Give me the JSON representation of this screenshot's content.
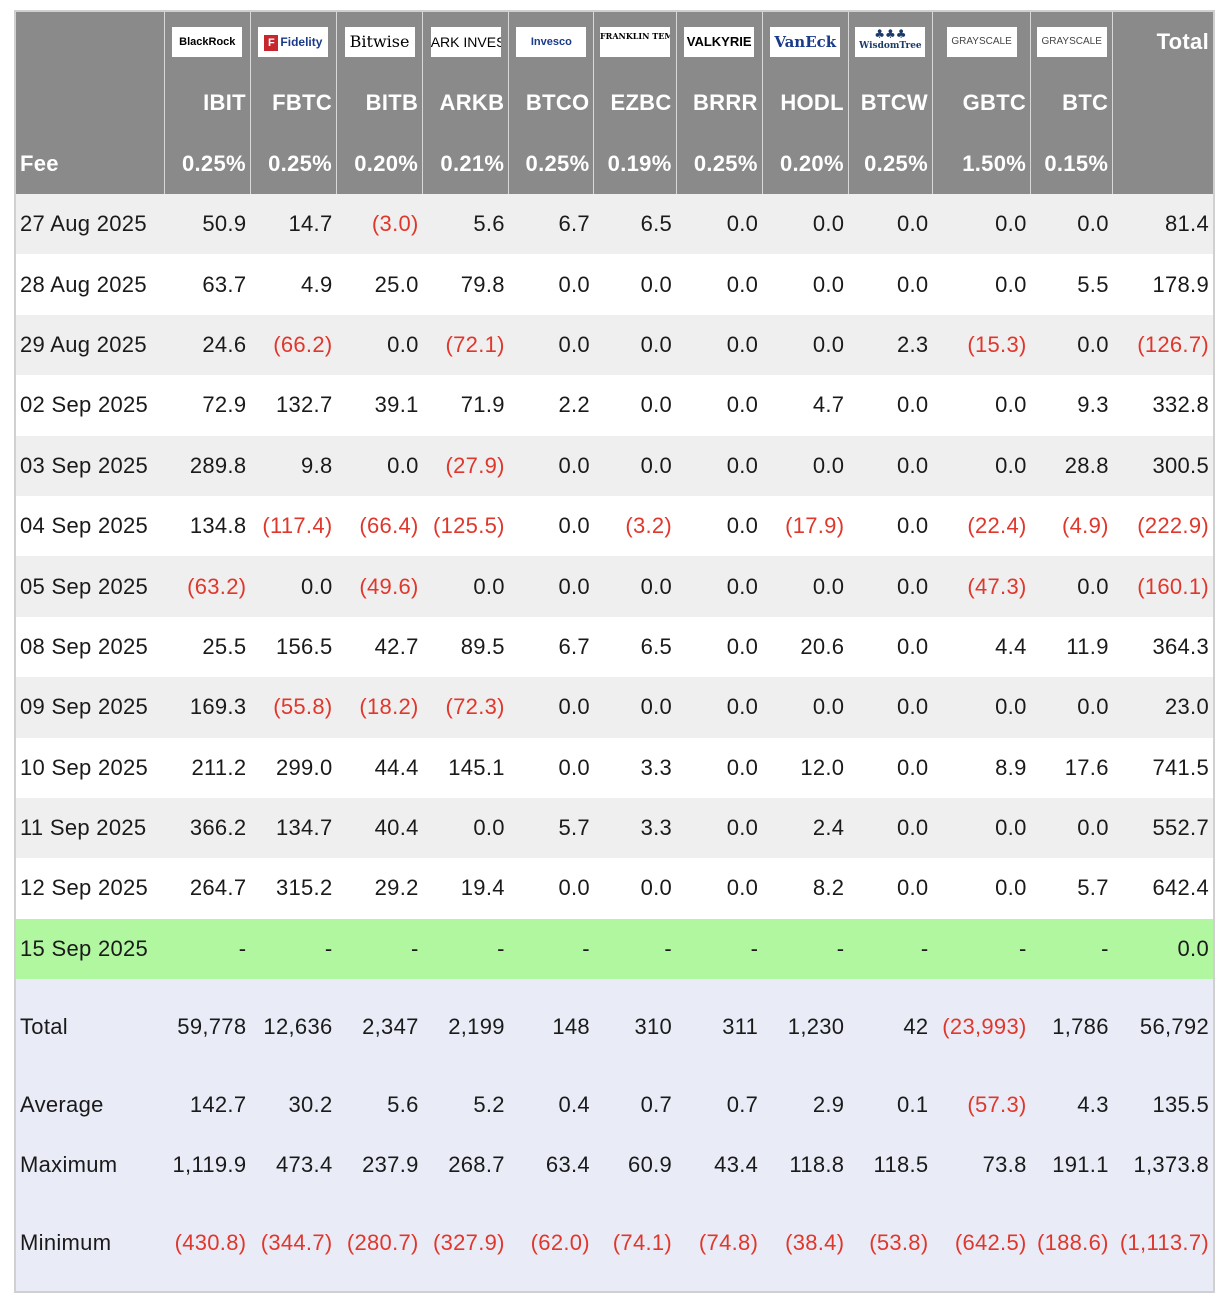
{
  "header": {
    "logos": [
      {
        "name": "BlackRock",
        "icon": "blackrock-logo"
      },
      {
        "name": "Fidelity",
        "icon": "fidelity-logo"
      },
      {
        "name": "Bitwise",
        "icon": "bitwise-logo"
      },
      {
        "name": "ARK INVEST",
        "icon": "ark-invest-logo"
      },
      {
        "name": "Invesco",
        "icon": "invesco-logo"
      },
      {
        "name": "FRANKLIN TEMPLETON",
        "icon": "franklin-templeton-logo"
      },
      {
        "name": "VALKYRIE",
        "icon": "valkyrie-logo"
      },
      {
        "name": "VanEck",
        "icon": "vaneck-logo"
      },
      {
        "name": "WisdomTree",
        "icon": "wisdomtree-logo"
      },
      {
        "name": "GRAYSCALE",
        "icon": "grayscale-logo"
      },
      {
        "name": "GRAYSCALE",
        "icon": "grayscale-logo"
      }
    ],
    "total_label": "Total",
    "tickers": [
      "IBIT",
      "FBTC",
      "BITB",
      "ARKB",
      "BTCO",
      "EZBC",
      "BRRR",
      "HODL",
      "BTCW",
      "GBTC",
      "BTC"
    ],
    "fee_label": "Fee",
    "fees": [
      "0.25%",
      "0.25%",
      "0.20%",
      "0.21%",
      "0.25%",
      "0.19%",
      "0.25%",
      "0.20%",
      "0.25%",
      "1.50%",
      "0.15%"
    ]
  },
  "rows": [
    {
      "date": "27 Aug 2025",
      "values": [
        "50.9",
        "14.7",
        "(3.0)",
        "5.6",
        "6.7",
        "6.5",
        "0.0",
        "0.0",
        "0.0",
        "0.0",
        "0.0",
        "81.4"
      ]
    },
    {
      "date": "28 Aug 2025",
      "values": [
        "63.7",
        "4.9",
        "25.0",
        "79.8",
        "0.0",
        "0.0",
        "0.0",
        "0.0",
        "0.0",
        "0.0",
        "5.5",
        "178.9"
      ]
    },
    {
      "date": "29 Aug 2025",
      "values": [
        "24.6",
        "(66.2)",
        "0.0",
        "(72.1)",
        "0.0",
        "0.0",
        "0.0",
        "0.0",
        "2.3",
        "(15.3)",
        "0.0",
        "(126.7)"
      ]
    },
    {
      "date": "02 Sep 2025",
      "values": [
        "72.9",
        "132.7",
        "39.1",
        "71.9",
        "2.2",
        "0.0",
        "0.0",
        "4.7",
        "0.0",
        "0.0",
        "9.3",
        "332.8"
      ]
    },
    {
      "date": "03 Sep 2025",
      "values": [
        "289.8",
        "9.8",
        "0.0",
        "(27.9)",
        "0.0",
        "0.0",
        "0.0",
        "0.0",
        "0.0",
        "0.0",
        "28.8",
        "300.5"
      ]
    },
    {
      "date": "04 Sep 2025",
      "values": [
        "134.8",
        "(117.4)",
        "(66.4)",
        "(125.5)",
        "0.0",
        "(3.2)",
        "0.0",
        "(17.9)",
        "0.0",
        "(22.4)",
        "(4.9)",
        "(222.9)"
      ]
    },
    {
      "date": "05 Sep 2025",
      "values": [
        "(63.2)",
        "0.0",
        "(49.6)",
        "0.0",
        "0.0",
        "0.0",
        "0.0",
        "0.0",
        "0.0",
        "(47.3)",
        "0.0",
        "(160.1)"
      ]
    },
    {
      "date": "08 Sep 2025",
      "values": [
        "25.5",
        "156.5",
        "42.7",
        "89.5",
        "6.7",
        "6.5",
        "0.0",
        "20.6",
        "0.0",
        "4.4",
        "11.9",
        "364.3"
      ]
    },
    {
      "date": "09 Sep 2025",
      "values": [
        "169.3",
        "(55.8)",
        "(18.2)",
        "(72.3)",
        "0.0",
        "0.0",
        "0.0",
        "0.0",
        "0.0",
        "0.0",
        "0.0",
        "23.0"
      ]
    },
    {
      "date": "10 Sep 2025",
      "values": [
        "211.2",
        "299.0",
        "44.4",
        "145.1",
        "0.0",
        "3.3",
        "0.0",
        "12.0",
        "0.0",
        "8.9",
        "17.6",
        "741.5"
      ]
    },
    {
      "date": "11 Sep 2025",
      "values": [
        "366.2",
        "134.7",
        "40.4",
        "0.0",
        "5.7",
        "3.3",
        "0.0",
        "2.4",
        "0.0",
        "0.0",
        "0.0",
        "552.7"
      ]
    },
    {
      "date": "12 Sep 2025",
      "values": [
        "264.7",
        "315.2",
        "29.2",
        "19.4",
        "0.0",
        "0.0",
        "0.0",
        "8.2",
        "0.0",
        "0.0",
        "5.7",
        "642.4"
      ]
    },
    {
      "date": "15 Sep 2025",
      "values": [
        "-",
        "-",
        "-",
        "-",
        "-",
        "-",
        "-",
        "-",
        "-",
        "-",
        "-",
        "0.0"
      ],
      "highlight": true
    }
  ],
  "summary": [
    {
      "label": "Total",
      "values": [
        "59,778",
        "12,636",
        "2,347",
        "2,199",
        "148",
        "310",
        "311",
        "1,230",
        "42",
        "(23,993)",
        "1,786",
        "56,792"
      ]
    },
    {
      "label": "Average",
      "values": [
        "142.7",
        "30.2",
        "5.6",
        "5.2",
        "0.4",
        "0.7",
        "0.7",
        "2.9",
        "0.1",
        "(57.3)",
        "4.3",
        "135.5"
      ]
    },
    {
      "label": "Maximum",
      "values": [
        "1,119.9",
        "473.4",
        "237.9",
        "268.7",
        "63.4",
        "60.9",
        "43.4",
        "118.8",
        "118.5",
        "73.8",
        "191.1",
        "1,373.8"
      ]
    },
    {
      "label": "Minimum",
      "values": [
        "(430.8)",
        "(344.7)",
        "(280.7)",
        "(327.9)",
        "(62.0)",
        "(74.1)",
        "(74.8)",
        "(38.4)",
        "(53.8)",
        "(642.5)",
        "(188.6)",
        "(1,113.7)"
      ]
    }
  ],
  "colors": {
    "header_bg": "#8a8a8a",
    "negative": "#e0372c",
    "highlight_row": "#b0f7a0",
    "summary_bg": "#e9ecf6",
    "stripe": "#efefef"
  }
}
